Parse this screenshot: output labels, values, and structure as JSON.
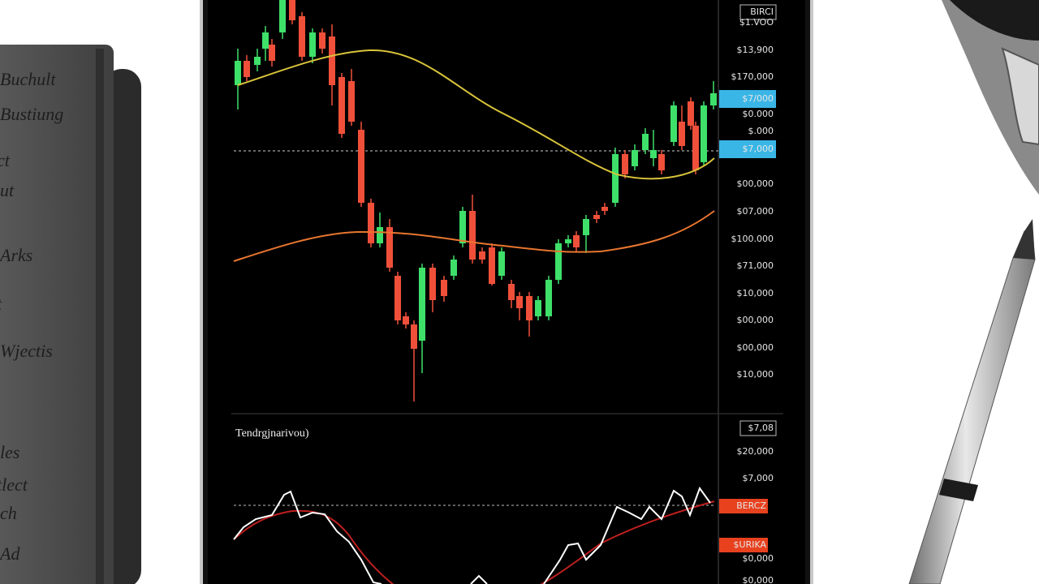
{
  "notebook": {
    "lines": [
      "Buchult",
      "Bustiung",
      "ct",
      "ut",
      "Arks",
      "t",
      "Wjectis",
      "les",
      "tlect",
      "ch",
      "Ad"
    ]
  },
  "price_axis": {
    "labels": [
      {
        "text": "BIRCI",
        "highlight": "box"
      },
      {
        "text": "$1.VOO"
      },
      {
        "text": "$13,900"
      },
      {
        "text": "$170,000"
      },
      {
        "text": "$7/000",
        "highlight": "blue"
      },
      {
        "text": "$0.000"
      },
      {
        "text": "$.000"
      },
      {
        "text": "$7,000",
        "highlight": "blue"
      },
      {
        "text": "$00,000"
      },
      {
        "text": "$07,000"
      },
      {
        "text": "$100.000"
      },
      {
        "text": "$71,000"
      },
      {
        "text": "$10,000"
      },
      {
        "text": "$00,000"
      },
      {
        "text": "$00,000"
      },
      {
        "text": "$10,000"
      }
    ]
  },
  "indicator_panel": {
    "title": "Tendrgjnarivou)",
    "labels": [
      {
        "text": "$7,08",
        "highlight": "box"
      },
      {
        "text": "$20,000"
      },
      {
        "text": "$7,000"
      },
      {
        "text": "BERCZ",
        "highlight": "red"
      },
      {
        "text": "$URIKA",
        "highlight": "red"
      },
      {
        "text": "$0,000"
      },
      {
        "text": "$0,000"
      }
    ]
  }
}
